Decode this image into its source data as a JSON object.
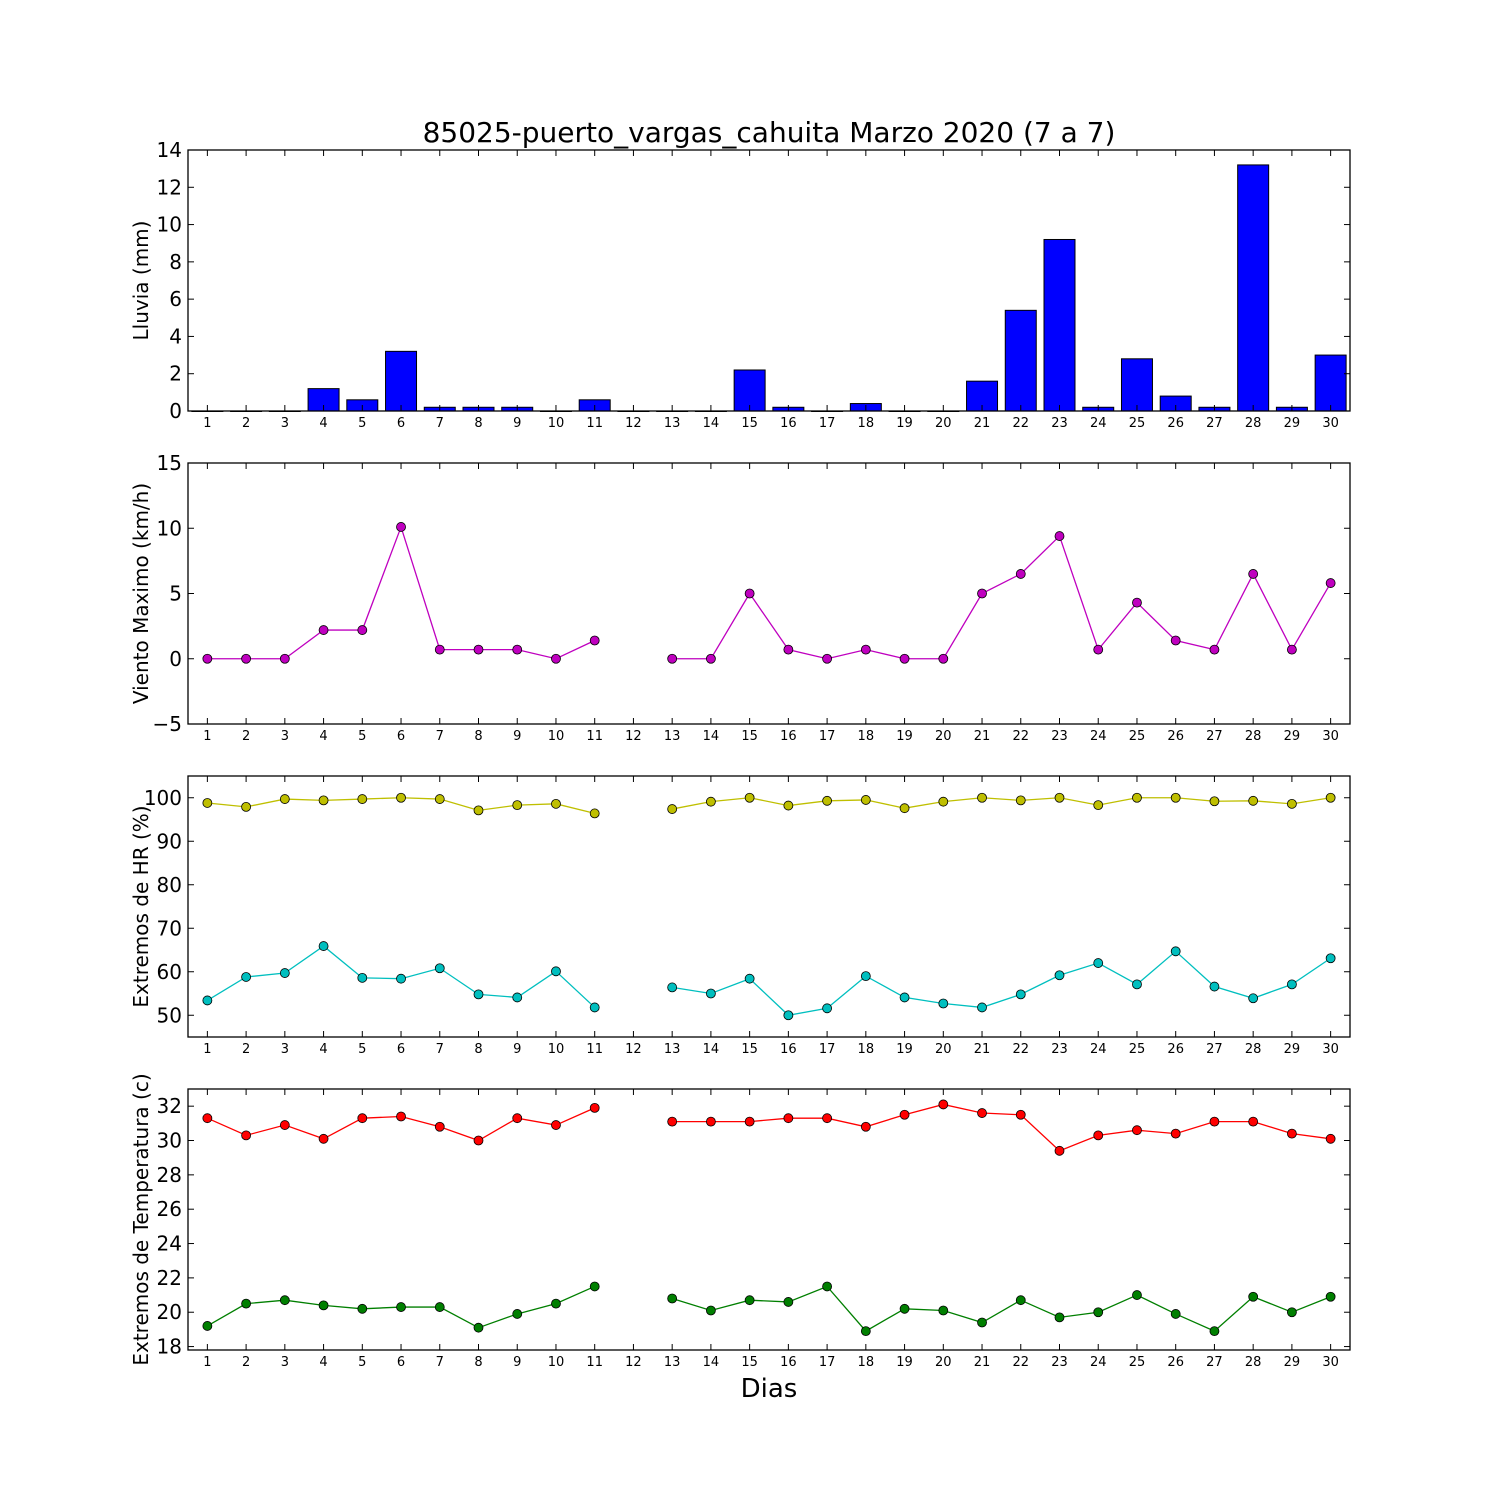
{
  "chart_data": {
    "title": "85025-puerto_vargas_cahuita Marzo 2020  (7 a 7)",
    "xlabel": "Dias",
    "days": [
      1,
      2,
      3,
      4,
      5,
      6,
      7,
      8,
      9,
      10,
      11,
      12,
      13,
      14,
      15,
      16,
      17,
      18,
      19,
      20,
      21,
      22,
      23,
      24,
      25,
      26,
      27,
      28,
      29,
      30
    ],
    "panels": [
      {
        "id": "lluvia",
        "type": "bar",
        "ylabel": "Lluvia (mm)",
        "ylim": [
          0,
          14
        ],
        "yticks": [
          0,
          2,
          4,
          6,
          8,
          10,
          12,
          14
        ],
        "series": [
          {
            "color": "#0000ff",
            "values": [
              0,
              0,
              0,
              1.2,
              0.6,
              3.2,
              0.2,
              0.2,
              0.2,
              0,
              0.6,
              0,
              0,
              0,
              2.2,
              0.2,
              0,
              0.4,
              0,
              0,
              1.6,
              5.4,
              9.2,
              0.2,
              2.8,
              0.8,
              0.2,
              13.2,
              0.2,
              3.0
            ]
          }
        ]
      },
      {
        "id": "viento",
        "type": "line",
        "ylabel": "Viento Maximo (km/h)",
        "ylim": [
          -5,
          15
        ],
        "yticks": [
          -5,
          0,
          5,
          10,
          15
        ],
        "ytick_labels": [
          "−5",
          "0",
          "5",
          "10",
          "15"
        ],
        "series": [
          {
            "color": "#bf00bf",
            "values": [
              0,
              0,
              0,
              2.2,
              2.2,
              10.1,
              0.7,
              0.7,
              0.7,
              0,
              1.4,
              null,
              0,
              0,
              5.0,
              0.7,
              0,
              0.7,
              0,
              0,
              5.0,
              6.5,
              9.4,
              0.7,
              4.3,
              1.4,
              0.7,
              6.5,
              0.7,
              5.8
            ]
          }
        ]
      },
      {
        "id": "humedad",
        "type": "line",
        "ylabel": "Extremos de HR (%)",
        "ylim": [
          45,
          105
        ],
        "yticks": [
          50,
          60,
          70,
          80,
          90,
          100
        ],
        "series": [
          {
            "color": "#bfbf00",
            "values": [
              98.8,
              97.9,
              99.7,
              99.4,
              99.7,
              100,
              99.7,
              97.1,
              98.3,
              98.6,
              96.4,
              null,
              97.4,
              99.1,
              100,
              98.2,
              99.3,
              99.5,
              97.6,
              99.1,
              100,
              99.4,
              100,
              98.3,
              100,
              100,
              99.2,
              99.3,
              98.6,
              100
            ]
          },
          {
            "color": "#00bfbf",
            "values": [
              53.4,
              58.8,
              59.7,
              65.9,
              58.6,
              58.4,
              60.8,
              54.8,
              54.1,
              60.1,
              51.8,
              null,
              56.4,
              55.0,
              58.4,
              50.0,
              51.6,
              59.0,
              54.1,
              52.7,
              51.8,
              54.8,
              59.2,
              62.0,
              57.1,
              64.7,
              56.6,
              53.9,
              57.1,
              63.1
            ]
          }
        ]
      },
      {
        "id": "temperatura",
        "type": "line",
        "ylabel": "Extremos de Temperatura (c)",
        "ylim": [
          17.8,
          33
        ],
        "yticks": [
          18,
          20,
          22,
          24,
          26,
          28,
          30,
          32
        ],
        "series": [
          {
            "color": "#ff0000",
            "values": [
              31.3,
              30.3,
              30.9,
              30.1,
              31.3,
              31.4,
              30.8,
              30.0,
              31.3,
              30.9,
              31.9,
              null,
              31.1,
              31.1,
              31.1,
              31.3,
              31.3,
              30.8,
              31.5,
              32.1,
              31.6,
              31.5,
              29.4,
              30.3,
              30.6,
              30.4,
              31.1,
              31.1,
              30.4,
              30.1
            ]
          },
          {
            "color": "#007f00",
            "values": [
              19.2,
              20.5,
              20.7,
              20.4,
              20.2,
              20.3,
              20.3,
              19.1,
              19.9,
              20.5,
              21.5,
              null,
              20.8,
              20.1,
              20.7,
              20.6,
              21.5,
              18.9,
              20.2,
              20.1,
              19.4,
              20.7,
              19.7,
              20.0,
              21.0,
              19.9,
              18.9,
              20.9,
              20.0,
              20.9
            ]
          }
        ]
      }
    ]
  }
}
